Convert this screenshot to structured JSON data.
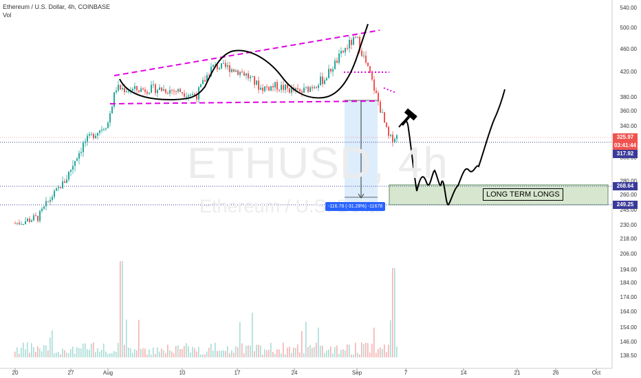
{
  "header": {
    "title": "Ethereum / U.S. Dollar, 4h, COINBASE",
    "volume_label": "Vol"
  },
  "watermark": {
    "symbol": "ETHUSD, 4h",
    "name": "Ethereum / U.S. Dollar"
  },
  "annotation": {
    "text": "LONG TERM LONGS"
  },
  "measure": {
    "text": "-116.78 (-31.28%) -11678"
  },
  "price_badges": {
    "last": "325.97",
    "countdown": "03:41:44",
    "level_1": "317.92",
    "level_2": "268.64",
    "level_3": "249.25"
  },
  "colors": {
    "up": "#26a69a",
    "down": "#ef5350",
    "trendline": "#e100e1",
    "measure_band": "#cfe5fb",
    "zone_fill": "#d7e7cf",
    "dotted_level": "#3a3a9a"
  },
  "icons": [
    "hammer-icon"
  ],
  "chart_data": {
    "type": "candlestick",
    "title": "Ethereum / U.S. Dollar, 4h, COINBASE",
    "price_ticks": [
      "540.00",
      "500.00",
      "460.00",
      "420.00",
      "380.00",
      "360.00",
      "340.00",
      "320.00",
      "300.00",
      "280.00",
      "260.00",
      "245.00",
      "230.00",
      "218.00",
      "206.00",
      "194.00",
      "184.00",
      "174.00",
      "164.00",
      "154.00",
      "146.00",
      "138.50"
    ],
    "time_ticks": [
      "20",
      "27",
      "Aug",
      "10",
      "17",
      "24",
      "Sep",
      "7",
      "14",
      "21",
      "26",
      "Oct"
    ],
    "price_levels": [
      317.92,
      268.64,
      249.25
    ],
    "last_price": 325.97,
    "measure": {
      "change": -116.78,
      "percent": -31.28
    },
    "path_points": [
      [
        "Jul 20",
        232
      ],
      [
        "Jul 23",
        238
      ],
      [
        "Jul 25",
        262
      ],
      [
        "Jul 27",
        288
      ],
      [
        "Jul 29",
        318
      ],
      [
        "Aug 1",
        345
      ],
      [
        "Aug 2",
        395
      ],
      [
        "Aug 4",
        392
      ],
      [
        "Aug 7",
        394
      ],
      [
        "Aug 10",
        390
      ],
      [
        "Aug 12",
        383
      ],
      [
        "Aug 14",
        430
      ],
      [
        "Aug 16",
        428
      ],
      [
        "Aug 18",
        418
      ],
      [
        "Aug 20",
        395
      ],
      [
        "Aug 22",
        398
      ],
      [
        "Aug 25",
        388
      ],
      [
        "Aug 28",
        410
      ],
      [
        "Aug 31",
        470
      ],
      [
        "Sep 1",
        480
      ],
      [
        "Sep 2",
        440
      ],
      [
        "Sep 3",
        400
      ],
      [
        "Sep 4",
        360
      ],
      [
        "Sep 5",
        322
      ],
      [
        "Sep 6",
        326
      ]
    ],
    "drawn_projection": [
      320,
      290,
      262,
      272,
      258,
      276,
      253,
      280,
      248,
      270,
      280,
      275,
      290,
      310,
      340,
      370,
      395
    ],
    "trendlines": [
      {
        "from": [
          "Aug 2",
          412
        ],
        "to": [
          "Sep 2",
          488
        ]
      },
      {
        "from": [
          "Aug 2",
          375
        ],
        "to": [
          "Sep 2",
          376
        ]
      }
    ],
    "zone": {
      "from": 249.25,
      "to": 268.64,
      "label": "LONG TERM LONGS"
    }
  }
}
